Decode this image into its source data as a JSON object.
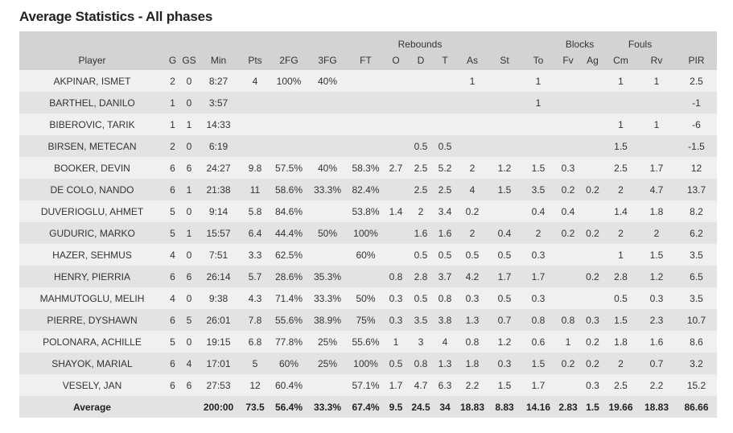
{
  "title": "Average Statistics - All phases",
  "groups": {
    "rebounds": "Rebounds",
    "blocks": "Blocks",
    "fouls": "Fouls"
  },
  "columns": [
    "Player",
    "G",
    "GS",
    "Min",
    "Pts",
    "2FG",
    "3FG",
    "FT",
    "O",
    "D",
    "T",
    "As",
    "St",
    "To",
    "Fv",
    "Ag",
    "Cm",
    "Rv",
    "PIR"
  ],
  "rows": [
    [
      "AKPINAR, ISMET",
      "2",
      "0",
      "8:27",
      "4",
      "100%",
      "40%",
      "",
      "",
      "",
      "",
      "1",
      "",
      "1",
      "",
      "",
      "1",
      "1",
      "2.5"
    ],
    [
      "BARTHEL, DANILO",
      "1",
      "0",
      "3:57",
      "",
      "",
      "",
      "",
      "",
      "",
      "",
      "",
      "",
      "1",
      "",
      "",
      "",
      "",
      "-1"
    ],
    [
      "BIBEROVIC, TARIK",
      "1",
      "1",
      "14:33",
      "",
      "",
      "",
      "",
      "",
      "",
      "",
      "",
      "",
      "",
      "",
      "",
      "1",
      "1",
      "-6"
    ],
    [
      "BIRSEN, METECAN",
      "2",
      "0",
      "6:19",
      "",
      "",
      "",
      "",
      "",
      "0.5",
      "0.5",
      "",
      "",
      "",
      "",
      "",
      "1.5",
      "",
      "-1.5"
    ],
    [
      "BOOKER, DEVIN",
      "6",
      "6",
      "24:27",
      "9.8",
      "57.5%",
      "40%",
      "58.3%",
      "2.7",
      "2.5",
      "5.2",
      "2",
      "1.2",
      "1.5",
      "0.3",
      "",
      "2.5",
      "1.7",
      "12"
    ],
    [
      "DE COLO, NANDO",
      "6",
      "1",
      "21:38",
      "11",
      "58.6%",
      "33.3%",
      "82.4%",
      "",
      "2.5",
      "2.5",
      "4",
      "1.5",
      "3.5",
      "0.2",
      "0.2",
      "2",
      "4.7",
      "13.7"
    ],
    [
      "DUVERIOGLU, AHMET",
      "5",
      "0",
      "9:14",
      "5.8",
      "84.6%",
      "",
      "53.8%",
      "1.4",
      "2",
      "3.4",
      "0.2",
      "",
      "0.4",
      "0.4",
      "",
      "1.4",
      "1.8",
      "8.2"
    ],
    [
      "GUDURIC, MARKO",
      "5",
      "1",
      "15:57",
      "6.4",
      "44.4%",
      "50%",
      "100%",
      "",
      "1.6",
      "1.6",
      "2",
      "0.4",
      "2",
      "0.2",
      "0.2",
      "2",
      "2",
      "6.2"
    ],
    [
      "HAZER, SEHMUS",
      "4",
      "0",
      "7:51",
      "3.3",
      "62.5%",
      "",
      "60%",
      "",
      "0.5",
      "0.5",
      "0.5",
      "0.5",
      "0.3",
      "",
      "",
      "1",
      "1.5",
      "3.5"
    ],
    [
      "HENRY, PIERRIA",
      "6",
      "6",
      "26:14",
      "5.7",
      "28.6%",
      "35.3%",
      "",
      "0.8",
      "2.8",
      "3.7",
      "4.2",
      "1.7",
      "1.7",
      "",
      "0.2",
      "2.8",
      "1.2",
      "6.5"
    ],
    [
      "MAHMUTOGLU, MELIH",
      "4",
      "0",
      "9:38",
      "4.3",
      "71.4%",
      "33.3%",
      "50%",
      "0.3",
      "0.5",
      "0.8",
      "0.3",
      "0.5",
      "0.3",
      "",
      "",
      "0.5",
      "0.3",
      "3.5"
    ],
    [
      "PIERRE, DYSHAWN",
      "6",
      "5",
      "26:01",
      "7.8",
      "55.6%",
      "38.9%",
      "75%",
      "0.3",
      "3.5",
      "3.8",
      "1.3",
      "0.7",
      "0.8",
      "0.8",
      "0.3",
      "1.5",
      "2.3",
      "10.7"
    ],
    [
      "POLONARA, ACHILLE",
      "5",
      "0",
      "19:15",
      "6.8",
      "77.8%",
      "25%",
      "55.6%",
      "1",
      "3",
      "4",
      "0.8",
      "1.2",
      "0.6",
      "1",
      "0.2",
      "1.8",
      "1.6",
      "8.6"
    ],
    [
      "SHAYOK, MARIAL",
      "6",
      "4",
      "17:01",
      "5",
      "60%",
      "25%",
      "100%",
      "0.5",
      "0.8",
      "1.3",
      "1.8",
      "0.3",
      "1.5",
      "0.2",
      "0.2",
      "2",
      "0.7",
      "3.2"
    ],
    [
      "VESELY, JAN",
      "6",
      "6",
      "27:53",
      "12",
      "60.4%",
      "",
      "57.1%",
      "1.7",
      "4.7",
      "6.3",
      "2.2",
      "1.5",
      "1.7",
      "",
      "0.3",
      "2.5",
      "2.2",
      "15.2"
    ]
  ],
  "average": [
    "Average",
    "",
    "",
    "200:00",
    "73.5",
    "56.4%",
    "33.3%",
    "67.4%",
    "9.5",
    "24.5",
    "34",
    "18.83",
    "8.83",
    "14.16",
    "2.83",
    "1.5",
    "19.66",
    "18.83",
    "86.66"
  ]
}
